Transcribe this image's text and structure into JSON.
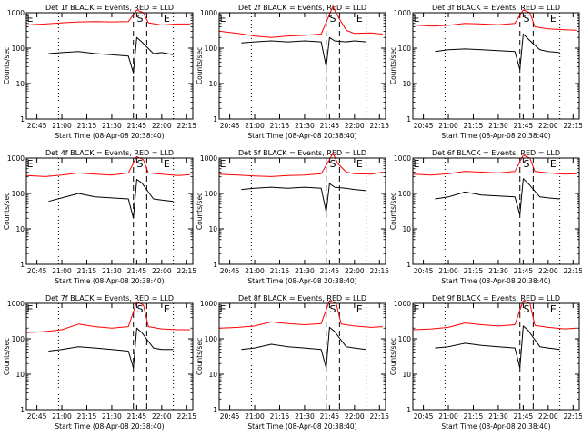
{
  "common": {
    "ylabel": "Counts/sec",
    "xlabel": "Start Time (08-Apr-08 20:38:40)",
    "x_tick_labels": [
      "20:45",
      "21:00",
      "21:15",
      "21:30",
      "21:45",
      "22:00",
      "22:15"
    ],
    "y_tick_labels": [
      "1",
      "10",
      "100",
      "1000"
    ],
    "region_labels": [
      "E",
      "S",
      "E"
    ],
    "colors": {
      "events": "#000000",
      "lld": "#ff0000"
    }
  },
  "chart_data": [
    {
      "type": "line",
      "title": "Det 1f BLACK = Events, RED = LLD",
      "x_range": [
        "20:38:40",
        "22:18:40"
      ],
      "y_scale": "log",
      "ylim": [
        1,
        1000
      ],
      "dotted_x": [
        "20:58",
        "22:07"
      ],
      "dashed_x": [
        "21:43",
        "21:51"
      ],
      "series": [
        {
          "name": "Events",
          "color": "#000000",
          "x": [
            "20:52",
            "21:00",
            "21:10",
            "21:20",
            "21:30",
            "21:40",
            "21:43",
            "21:45",
            "21:48",
            "21:55",
            "22:00",
            "22:07"
          ],
          "y": [
            70,
            75,
            80,
            70,
            65,
            60,
            20,
            200,
            150,
            70,
            75,
            65
          ]
        },
        {
          "name": "LLD",
          "color": "#ff0000",
          "x": [
            "20:39",
            "20:50",
            "21:00",
            "21:10",
            "21:20",
            "21:30",
            "21:40",
            "21:45",
            "21:49",
            "21:52",
            "22:00",
            "22:10",
            "22:17"
          ],
          "y": [
            450,
            480,
            520,
            550,
            560,
            550,
            560,
            1200,
            1000,
            520,
            450,
            480,
            480
          ]
        }
      ]
    },
    {
      "type": "line",
      "title": "Det 2f BLACK = Events, RED = LLD",
      "x_range": [
        "20:38:40",
        "22:18:40"
      ],
      "y_scale": "log",
      "ylim": [
        1,
        1000
      ],
      "dotted_x": [
        "20:58",
        "22:07"
      ],
      "dashed_x": [
        "21:43",
        "21:51"
      ],
      "series": [
        {
          "name": "Events",
          "color": "#000000",
          "x": [
            "20:52",
            "21:00",
            "21:10",
            "21:20",
            "21:30",
            "21:40",
            "21:43",
            "21:45",
            "21:48",
            "21:55",
            "22:00",
            "22:07"
          ],
          "y": [
            140,
            150,
            160,
            150,
            160,
            150,
            30,
            200,
            160,
            150,
            160,
            150
          ]
        },
        {
          "name": "LLD",
          "color": "#ff0000",
          "x": [
            "20:39",
            "20:50",
            "21:00",
            "21:10",
            "21:20",
            "21:30",
            "21:40",
            "21:45",
            "21:47",
            "21:50",
            "21:55",
            "22:00",
            "22:10",
            "22:17"
          ],
          "y": [
            300,
            260,
            220,
            200,
            220,
            230,
            250,
            900,
            1500,
            800,
            320,
            260,
            270,
            250
          ]
        }
      ]
    },
    {
      "type": "line",
      "title": "Det 3f BLACK = Events, RED = LLD",
      "x_range": [
        "20:38:40",
        "22:18:40"
      ],
      "y_scale": "log",
      "ylim": [
        1,
        1000
      ],
      "dotted_x": [
        "20:58",
        "22:07"
      ],
      "dashed_x": [
        "21:43",
        "21:51"
      ],
      "series": [
        {
          "name": "Events",
          "color": "#000000",
          "x": [
            "20:52",
            "21:00",
            "21:10",
            "21:20",
            "21:30",
            "21:40",
            "21:43",
            "21:45",
            "21:48",
            "21:55",
            "22:00",
            "22:07"
          ],
          "y": [
            80,
            90,
            95,
            90,
            85,
            80,
            25,
            250,
            180,
            90,
            80,
            75
          ]
        },
        {
          "name": "LLD",
          "color": "#ff0000",
          "x": [
            "20:39",
            "20:50",
            "21:00",
            "21:10",
            "21:20",
            "21:30",
            "21:40",
            "21:45",
            "21:49",
            "21:52",
            "22:00",
            "22:10",
            "22:17"
          ],
          "y": [
            450,
            420,
            440,
            500,
            480,
            460,
            500,
            1200,
            1000,
            400,
            350,
            330,
            320
          ]
        }
      ]
    },
    {
      "type": "line",
      "title": "Det 4f BLACK = Events, RED = LLD",
      "x_range": [
        "20:38:40",
        "22:18:40"
      ],
      "y_scale": "log",
      "ylim": [
        1,
        1000
      ],
      "dotted_x": [
        "20:58",
        "22:07"
      ],
      "dashed_x": [
        "21:43",
        "21:51"
      ],
      "series": [
        {
          "name": "Events",
          "color": "#000000",
          "x": [
            "20:52",
            "21:00",
            "21:10",
            "21:20",
            "21:30",
            "21:40",
            "21:43",
            "21:45",
            "21:48",
            "21:55",
            "22:00",
            "22:07"
          ],
          "y": [
            60,
            75,
            100,
            80,
            75,
            70,
            20,
            250,
            200,
            70,
            65,
            60
          ]
        },
        {
          "name": "LLD",
          "color": "#ff0000",
          "x": [
            "20:39",
            "20:50",
            "21:00",
            "21:10",
            "21:20",
            "21:30",
            "21:40",
            "21:45",
            "21:49",
            "21:52",
            "22:00",
            "22:10",
            "22:17"
          ],
          "y": [
            320,
            300,
            330,
            380,
            350,
            330,
            380,
            1100,
            900,
            380,
            350,
            320,
            340
          ]
        }
      ]
    },
    {
      "type": "line",
      "title": "Det 5f BLACK = Events, RED = LLD",
      "x_range": [
        "20:38:40",
        "22:18:40"
      ],
      "y_scale": "log",
      "ylim": [
        1,
        1000
      ],
      "dotted_x": [
        "20:58",
        "22:07"
      ],
      "dashed_x": [
        "21:43",
        "21:51"
      ],
      "series": [
        {
          "name": "Events",
          "color": "#000000",
          "x": [
            "20:52",
            "21:00",
            "21:10",
            "21:20",
            "21:30",
            "21:40",
            "21:43",
            "21:45",
            "21:48",
            "21:55",
            "22:00",
            "22:07"
          ],
          "y": [
            130,
            140,
            150,
            140,
            150,
            140,
            30,
            190,
            150,
            140,
            130,
            120
          ]
        },
        {
          "name": "LLD",
          "color": "#ff0000",
          "x": [
            "20:39",
            "20:50",
            "21:00",
            "21:10",
            "21:20",
            "21:30",
            "21:40",
            "21:45",
            "21:47",
            "21:50",
            "21:55",
            "22:00",
            "22:10",
            "22:17"
          ],
          "y": [
            350,
            330,
            310,
            300,
            320,
            330,
            360,
            900,
            1400,
            700,
            400,
            360,
            350,
            400
          ]
        }
      ]
    },
    {
      "type": "line",
      "title": "Det 6f BLACK = Events, RED = LLD",
      "x_range": [
        "20:38:40",
        "22:18:40"
      ],
      "y_scale": "log",
      "ylim": [
        1,
        1000
      ],
      "dotted_x": [
        "20:58",
        "22:07"
      ],
      "dashed_x": [
        "21:43",
        "21:51"
      ],
      "series": [
        {
          "name": "Events",
          "color": "#000000",
          "x": [
            "20:52",
            "21:00",
            "21:10",
            "21:20",
            "21:30",
            "21:40",
            "21:43",
            "21:45",
            "21:48",
            "21:55",
            "22:00",
            "22:07"
          ],
          "y": [
            70,
            80,
            110,
            90,
            85,
            80,
            25,
            260,
            190,
            80,
            75,
            70
          ]
        },
        {
          "name": "LLD",
          "color": "#ff0000",
          "x": [
            "20:39",
            "20:50",
            "21:00",
            "21:10",
            "21:20",
            "21:30",
            "21:40",
            "21:45",
            "21:49",
            "21:52",
            "22:00",
            "22:10",
            "22:17"
          ],
          "y": [
            350,
            330,
            360,
            420,
            400,
            380,
            420,
            1200,
            1000,
            420,
            380,
            350,
            360
          ]
        }
      ]
    },
    {
      "type": "line",
      "title": "Det 7f BLACK = Events, RED = LLD",
      "x_range": [
        "20:38:40",
        "22:18:40"
      ],
      "y_scale": "log",
      "ylim": [
        1,
        1000
      ],
      "dotted_x": [
        "20:58",
        "22:07"
      ],
      "dashed_x": [
        "21:43",
        "21:51"
      ],
      "series": [
        {
          "name": "Events",
          "color": "#000000",
          "x": [
            "20:52",
            "21:00",
            "21:10",
            "21:20",
            "21:30",
            "21:40",
            "21:43",
            "21:45",
            "21:48",
            "21:55",
            "22:00",
            "22:07"
          ],
          "y": [
            45,
            50,
            60,
            55,
            50,
            45,
            15,
            200,
            150,
            55,
            50,
            50
          ]
        },
        {
          "name": "LLD",
          "color": "#ff0000",
          "x": [
            "20:39",
            "20:50",
            "21:00",
            "21:10",
            "21:20",
            "21:30",
            "21:40",
            "21:45",
            "21:49",
            "21:52",
            "22:00",
            "22:10",
            "22:17"
          ],
          "y": [
            150,
            160,
            180,
            260,
            220,
            200,
            220,
            1100,
            900,
            220,
            190,
            180,
            180
          ]
        }
      ]
    },
    {
      "type": "line",
      "title": "Det 8f BLACK = Events, RED = LLD",
      "x_range": [
        "20:38:40",
        "22:18:40"
      ],
      "y_scale": "log",
      "ylim": [
        1,
        1000
      ],
      "dotted_x": [
        "20:58",
        "22:07"
      ],
      "dashed_x": [
        "21:43",
        "21:51"
      ],
      "series": [
        {
          "name": "Events",
          "color": "#000000",
          "x": [
            "20:52",
            "21:00",
            "21:10",
            "21:20",
            "21:30",
            "21:40",
            "21:43",
            "21:45",
            "21:48",
            "21:55",
            "22:00",
            "22:07"
          ],
          "y": [
            50,
            55,
            70,
            60,
            55,
            50,
            15,
            210,
            160,
            60,
            55,
            50
          ]
        },
        {
          "name": "LLD",
          "color": "#ff0000",
          "x": [
            "20:39",
            "20:50",
            "21:00",
            "21:10",
            "21:20",
            "21:30",
            "21:40",
            "21:45",
            "21:49",
            "21:52",
            "22:00",
            "22:10",
            "22:17"
          ],
          "y": [
            200,
            210,
            230,
            300,
            270,
            250,
            270,
            1200,
            1000,
            260,
            230,
            210,
            220
          ]
        }
      ]
    },
    {
      "type": "line",
      "title": "Det 9f BLACK = Events, RED = LLD",
      "x_range": [
        "20:38:40",
        "22:18:40"
      ],
      "y_scale": "log",
      "ylim": [
        1,
        1000
      ],
      "dotted_x": [
        "20:58",
        "22:07"
      ],
      "dashed_x": [
        "21:43",
        "21:51"
      ],
      "series": [
        {
          "name": "Events",
          "color": "#000000",
          "x": [
            "20:52",
            "21:00",
            "21:10",
            "21:20",
            "21:30",
            "21:40",
            "21:43",
            "21:45",
            "21:48",
            "21:55",
            "22:00",
            "22:07"
          ],
          "y": [
            55,
            60,
            75,
            65,
            60,
            55,
            15,
            230,
            170,
            60,
            55,
            50
          ]
        },
        {
          "name": "LLD",
          "color": "#ff0000",
          "x": [
            "20:39",
            "20:50",
            "21:00",
            "21:10",
            "21:20",
            "21:30",
            "21:40",
            "21:45",
            "21:49",
            "21:52",
            "22:00",
            "22:10",
            "22:17"
          ],
          "y": [
            180,
            190,
            210,
            280,
            250,
            230,
            250,
            1200,
            1000,
            240,
            210,
            190,
            200
          ]
        }
      ]
    }
  ]
}
